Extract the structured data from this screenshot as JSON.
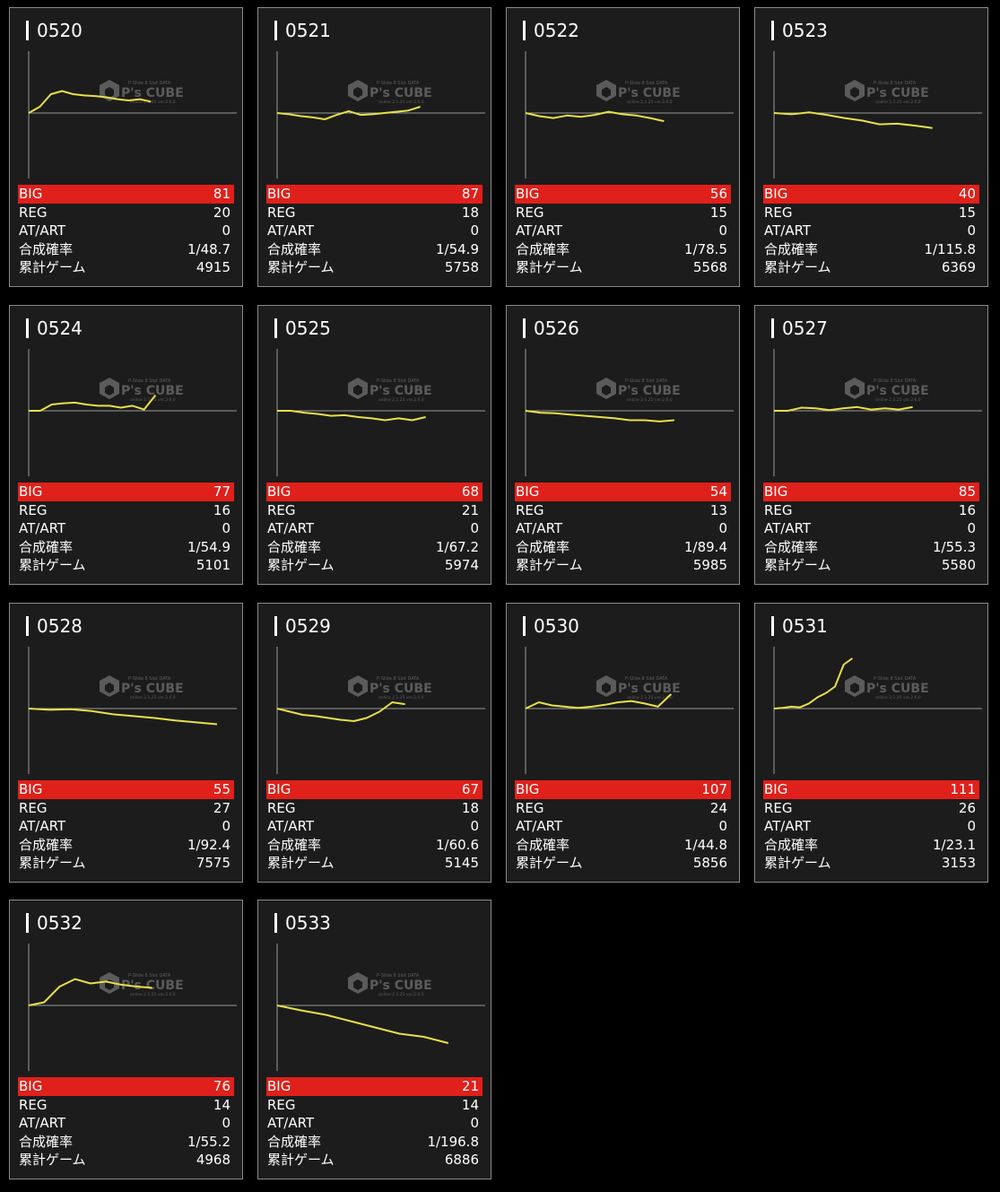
{
  "labels": {
    "big": "BIG",
    "reg": "REG",
    "atart": "AT/ART",
    "prob": "合成確率",
    "games": "累計ゲーム"
  },
  "watermark": {
    "brand": "P's CUBE",
    "tagline": "P-Slide 8 Slot DATA",
    "subline": "online 2.1.25 ver.2.6.0"
  },
  "colors": {
    "background": "#000000",
    "card": "#1c1c1c",
    "big_row": "#e0201a",
    "graph_line": "#e8e04a",
    "axis": "#9a9a9a"
  },
  "machines": [
    {
      "id": "0520",
      "big": "81",
      "reg": "20",
      "atart": "0",
      "prob": "1/48.7",
      "games": "4915",
      "graph": [
        0,
        0.1,
        0.3,
        0.35,
        0.3,
        0.28,
        0.27,
        0.25,
        0.22,
        0.2,
        0.22,
        0.18
      ]
    },
    {
      "id": "0521",
      "big": "87",
      "reg": "18",
      "atart": "0",
      "prob": "1/54.9",
      "games": "5758",
      "graph": [
        0,
        -0.02,
        -0.05,
        -0.07,
        -0.1,
        -0.03,
        0.03,
        -0.03,
        -0.02,
        0,
        0.02,
        0.04,
        0.1
      ]
    },
    {
      "id": "0522",
      "big": "56",
      "reg": "15",
      "atart": "0",
      "prob": "1/78.5",
      "games": "5568",
      "graph": [
        0,
        -0.05,
        -0.08,
        -0.04,
        -0.06,
        -0.03,
        0.02,
        -0.02,
        -0.04,
        -0.08,
        -0.13
      ]
    },
    {
      "id": "0523",
      "big": "40",
      "reg": "15",
      "atart": "0",
      "prob": "1/115.8",
      "games": "6369",
      "graph": [
        0,
        -0.02,
        0.01,
        -0.03,
        -0.08,
        -0.12,
        -0.18,
        -0.17,
        -0.2,
        -0.24
      ]
    },
    {
      "id": "0524",
      "big": "77",
      "reg": "16",
      "atart": "0",
      "prob": "1/54.9",
      "games": "5101",
      "graph": [
        0,
        0,
        0.1,
        0.12,
        0.13,
        0.1,
        0.08,
        0.08,
        0.05,
        0.08,
        0.02,
        0.25
      ]
    },
    {
      "id": "0525",
      "big": "68",
      "reg": "21",
      "atart": "0",
      "prob": "1/67.2",
      "games": "5974",
      "graph": [
        0,
        0,
        -0.03,
        -0.05,
        -0.08,
        -0.07,
        -0.1,
        -0.12,
        -0.15,
        -0.12,
        -0.15,
        -0.1
      ]
    },
    {
      "id": "0526",
      "big": "54",
      "reg": "13",
      "atart": "0",
      "prob": "1/89.4",
      "games": "5985",
      "graph": [
        0,
        -0.03,
        -0.04,
        -0.06,
        -0.08,
        -0.1,
        -0.12,
        -0.15,
        -0.15,
        -0.17,
        -0.15
      ]
    },
    {
      "id": "0527",
      "big": "85",
      "reg": "16",
      "atart": "0",
      "prob": "1/55.3",
      "games": "5580",
      "graph": [
        0,
        0,
        0.05,
        0.04,
        0.01,
        0.04,
        0.06,
        0.02,
        0.04,
        0.02,
        0.06
      ]
    },
    {
      "id": "0528",
      "big": "55",
      "reg": "27",
      "atart": "0",
      "prob": "1/92.4",
      "games": "7575",
      "graph": [
        0,
        -0.02,
        -0.01,
        -0.04,
        -0.09,
        -0.12,
        -0.15,
        -0.19,
        -0.22,
        -0.25
      ]
    },
    {
      "id": "0529",
      "big": "67",
      "reg": "18",
      "atart": "0",
      "prob": "1/60.6",
      "games": "5145",
      "graph": [
        0,
        -0.05,
        -0.1,
        -0.12,
        -0.15,
        -0.18,
        -0.2,
        -0.15,
        -0.05,
        0.1,
        0.07
      ]
    },
    {
      "id": "0530",
      "big": "107",
      "reg": "24",
      "atart": "0",
      "prob": "1/44.8",
      "games": "5856",
      "graph": [
        0,
        0.1,
        0.05,
        0.03,
        0.01,
        0.03,
        0.06,
        0.1,
        0.12,
        0.08,
        0.03,
        0.23
      ]
    },
    {
      "id": "0531",
      "big": "111",
      "reg": "26",
      "atart": "0",
      "prob": "1/23.1",
      "games": "3153",
      "graph": [
        0,
        0.01,
        0.03,
        0.02,
        0.08,
        0.18,
        0.25,
        0.35,
        0.7,
        0.8
      ]
    },
    {
      "id": "0532",
      "big": "76",
      "reg": "14",
      "atart": "0",
      "prob": "1/55.2",
      "games": "4968",
      "graph": [
        0,
        0.05,
        0.3,
        0.42,
        0.35,
        0.38,
        0.33,
        0.3,
        0.28
      ]
    },
    {
      "id": "0533",
      "big": "21",
      "reg": "14",
      "atart": "0",
      "prob": "1/196.8",
      "games": "6886",
      "graph": [
        0,
        -0.08,
        -0.15,
        -0.25,
        -0.35,
        -0.45,
        -0.5,
        -0.6
      ]
    }
  ]
}
